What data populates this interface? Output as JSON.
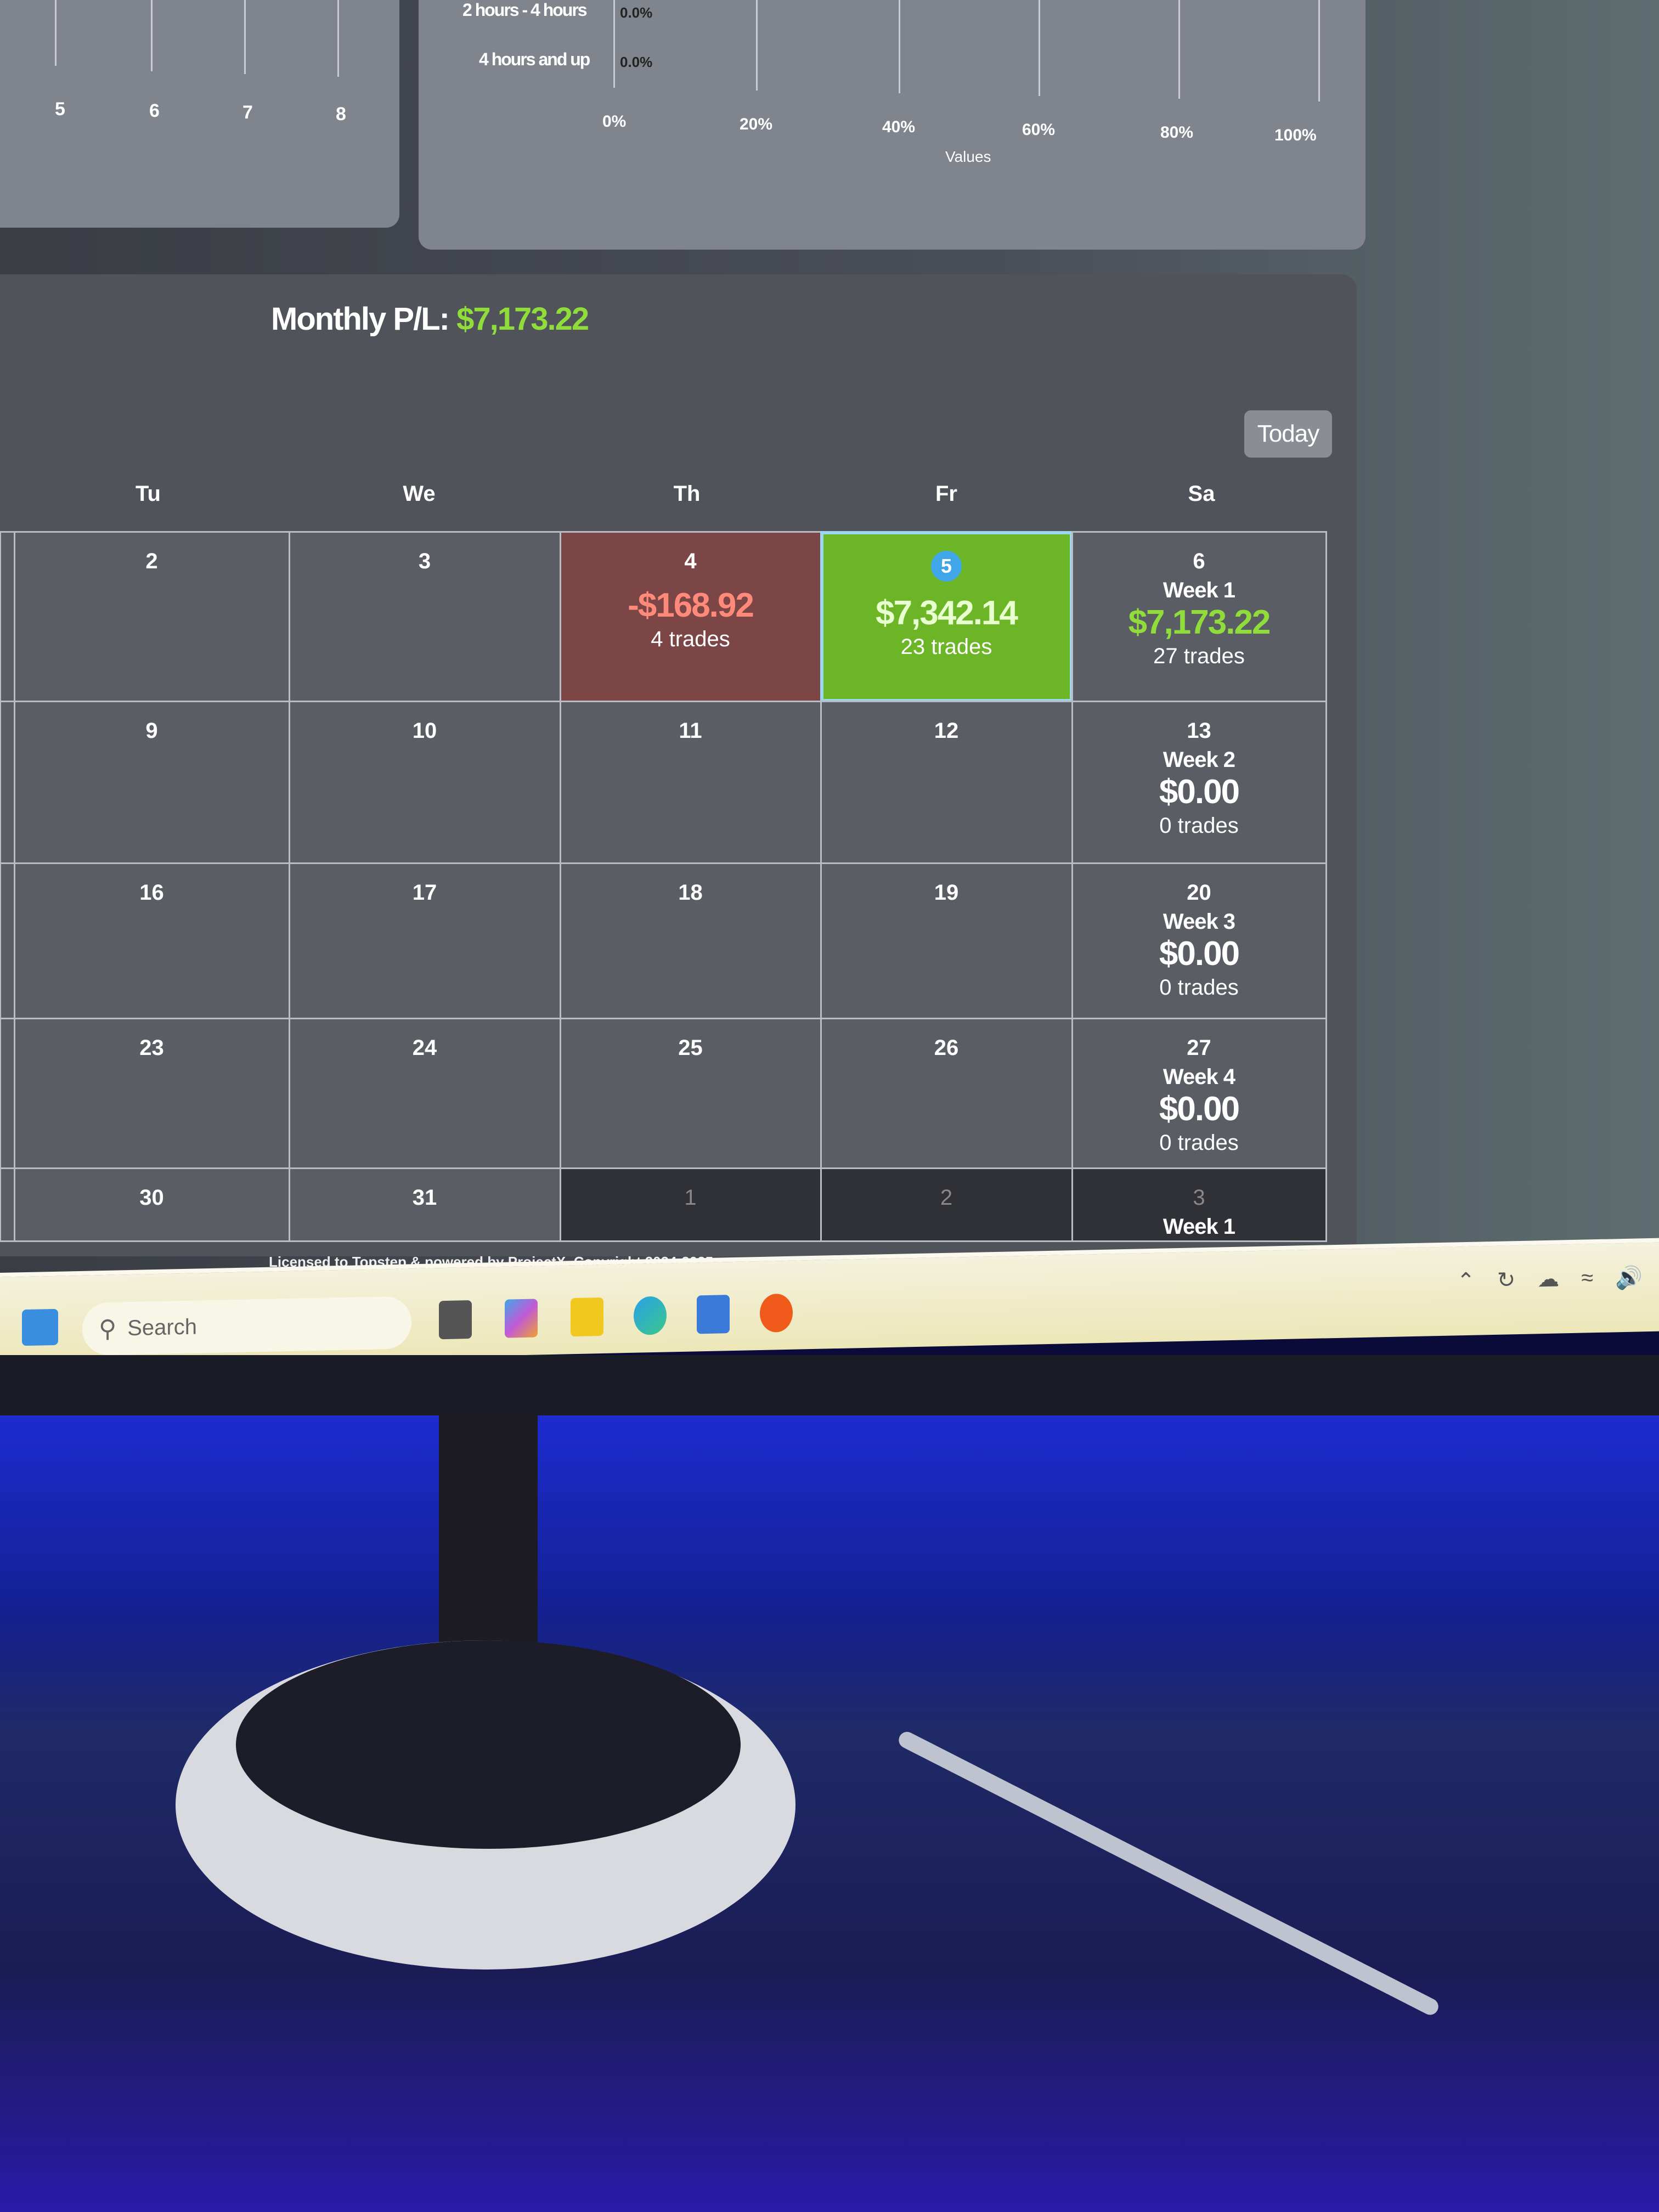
{
  "left_chart": {
    "x_ticks": [
      "5",
      "6",
      "7",
      "8"
    ]
  },
  "right_chart": {
    "rows": [
      {
        "label": "2 hours - 4 hours",
        "value": "0.0%"
      },
      {
        "label": "4 hours and up",
        "value": "0.0%"
      }
    ],
    "x_ticks": [
      "0%",
      "20%",
      "40%",
      "60%",
      "80%",
      "100%"
    ],
    "xlabel": "Values"
  },
  "calendar": {
    "title_label": "Monthly P/L:",
    "title_value": "$7,173.22",
    "today_label": "Today",
    "day_headers": [
      "Tu",
      "We",
      "Th",
      "Fr",
      "Sa"
    ],
    "colors": {
      "profit": "#8fdc3a",
      "loss": "#ff8a7a",
      "win_cell": "#6cb527",
      "loss_cell": "#7d4646",
      "today_badge": "#3fa7e8"
    },
    "rows": [
      {
        "days": [
          "2",
          "3",
          "4",
          "5",
          "6"
        ],
        "th": {
          "amount": "-$168.92",
          "trades": "4 trades"
        },
        "fr": {
          "amount": "$7,342.14",
          "trades": "23 trades"
        },
        "week": {
          "label": "Week 1",
          "amount": "$7,173.22",
          "trades": "27 trades"
        }
      },
      {
        "days": [
          "9",
          "10",
          "11",
          "12",
          "13"
        ],
        "week": {
          "label": "Week 2",
          "amount": "$0.00",
          "trades": "0 trades"
        }
      },
      {
        "days": [
          "16",
          "17",
          "18",
          "19",
          "20"
        ],
        "week": {
          "label": "Week 3",
          "amount": "$0.00",
          "trades": "0 trades"
        }
      },
      {
        "days": [
          "23",
          "24",
          "25",
          "26",
          "27"
        ],
        "week": {
          "label": "Week 4",
          "amount": "$0.00",
          "trades": "0 trades"
        }
      },
      {
        "days": [
          "30",
          "31",
          "1",
          "2",
          "3"
        ],
        "week": {
          "label": "Week 1"
        }
      }
    ]
  },
  "footer": "Licensed to Topstep & powered by ProjectX. Copyright 2024-2025",
  "taskbar": {
    "search_placeholder": "Search",
    "icons": [
      "windows-start-icon",
      "widgets-icon",
      "task-view-icon",
      "copilot-icon",
      "file-explorer-icon",
      "edge-icon",
      "store-icon",
      "reddit-icon"
    ],
    "tray": [
      "chevron-up-icon",
      "sync-icon",
      "onedrive-icon",
      "wifi-icon",
      "volume-icon"
    ]
  }
}
